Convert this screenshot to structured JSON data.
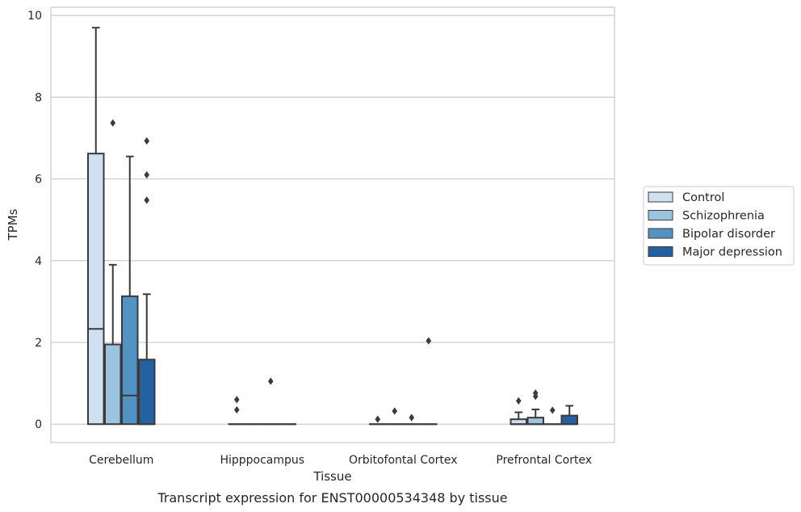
{
  "caption": "Transcript expression for ENST00000534348 by tissue",
  "colors": {
    "Control": "#d0e0f0",
    "Schizophrenia": "#9cc4de",
    "Bipolar disorder": "#5293c2",
    "Major depression": "#2461a3",
    "stroke": "#3a3a3a",
    "grid": "#cccccc"
  },
  "chart_data": {
    "type": "box",
    "xlabel": "Tissue",
    "ylabel": "TPMs",
    "ylim": [
      -0.45,
      10.2
    ],
    "yticks": [
      0,
      2,
      4,
      6,
      8,
      10
    ],
    "grid": "horizontal",
    "legend_position": "right",
    "categories": [
      "Cerebellum",
      "Hipppocampus",
      "Orbitofontal Cortex",
      "Prefrontal Cortex"
    ],
    "series": [
      {
        "name": "Control",
        "boxes": [
          {
            "q1": 0,
            "median": 2.33,
            "q3": 6.62,
            "whisker_low": 0,
            "whisker_high": 9.7,
            "outliers": []
          },
          {
            "q1": 0,
            "median": 0,
            "q3": 0,
            "whisker_low": 0,
            "whisker_high": 0,
            "outliers": [
              0.35,
              0.6
            ]
          },
          {
            "q1": 0,
            "median": 0,
            "q3": 0,
            "whisker_low": 0,
            "whisker_high": 0,
            "outliers": [
              0.12
            ]
          },
          {
            "q1": 0,
            "median": 0,
            "q3": 0.12,
            "whisker_low": 0,
            "whisker_high": 0.29,
            "outliers": [
              0.57
            ]
          }
        ]
      },
      {
        "name": "Schizophrenia",
        "boxes": [
          {
            "q1": 0,
            "median": 1.95,
            "q3": 1.95,
            "whisker_low": 0,
            "whisker_high": 3.9,
            "outliers": [
              7.37
            ]
          },
          {
            "q1": 0,
            "median": 0,
            "q3": 0,
            "whisker_low": 0,
            "whisker_high": 0,
            "outliers": []
          },
          {
            "q1": 0,
            "median": 0,
            "q3": 0,
            "whisker_low": 0,
            "whisker_high": 0,
            "outliers": [
              0.32
            ]
          },
          {
            "q1": 0,
            "median": 0,
            "q3": 0.16,
            "whisker_low": 0,
            "whisker_high": 0.36,
            "outliers": [
              0.68,
              0.76
            ]
          }
        ]
      },
      {
        "name": "Bipolar disorder",
        "boxes": [
          {
            "q1": 0,
            "median": 0.7,
            "q3": 3.13,
            "whisker_low": 0,
            "whisker_high": 6.55,
            "outliers": []
          },
          {
            "q1": 0,
            "median": 0,
            "q3": 0,
            "whisker_low": 0,
            "whisker_high": 0,
            "outliers": [
              1.05
            ]
          },
          {
            "q1": 0,
            "median": 0,
            "q3": 0,
            "whisker_low": 0,
            "whisker_high": 0,
            "outliers": [
              0.16
            ]
          },
          {
            "q1": 0,
            "median": 0,
            "q3": 0,
            "whisker_low": 0,
            "whisker_high": 0,
            "outliers": [
              0.34
            ]
          }
        ]
      },
      {
        "name": "Major depression",
        "boxes": [
          {
            "q1": 0,
            "median": 0,
            "q3": 1.58,
            "whisker_low": 0,
            "whisker_high": 3.18,
            "outliers": [
              5.48,
              6.1,
              6.93
            ]
          },
          {
            "q1": 0,
            "median": 0,
            "q3": 0,
            "whisker_low": 0,
            "whisker_high": 0,
            "outliers": []
          },
          {
            "q1": 0,
            "median": 0,
            "q3": 0,
            "whisker_low": 0,
            "whisker_high": 0,
            "outliers": [
              2.04
            ]
          },
          {
            "q1": 0,
            "median": 0,
            "q3": 0.21,
            "whisker_low": 0,
            "whisker_high": 0.45,
            "outliers": []
          }
        ]
      }
    ]
  }
}
